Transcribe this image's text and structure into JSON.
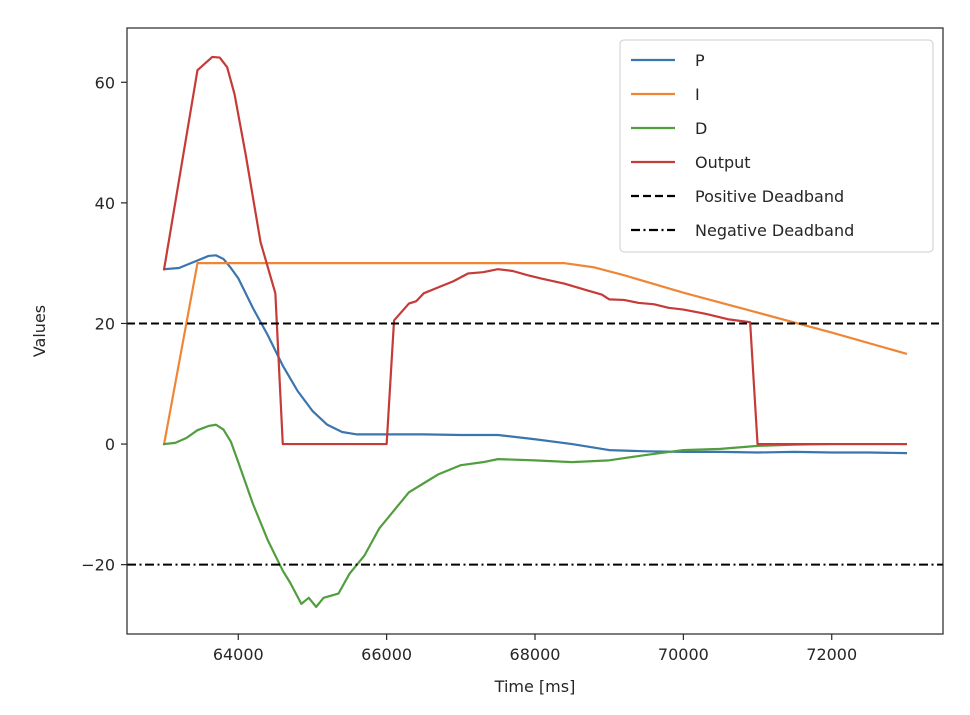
{
  "chart_data": {
    "type": "line",
    "xlabel": "Time [ms]",
    "ylabel": "Values",
    "xlim": [
      62500,
      73500
    ],
    "ylim": [
      -31.5,
      69
    ],
    "xticks": [
      64000,
      66000,
      68000,
      70000,
      72000
    ],
    "yticks": [
      -20,
      0,
      20,
      40,
      60
    ],
    "ytick_labels": [
      "−20",
      "0",
      "20",
      "40",
      "60"
    ],
    "legend": {
      "placement": "upper-right"
    },
    "grid": false,
    "series": [
      {
        "name": "P",
        "color": "#3b75af",
        "style": "solid",
        "points": [
          [
            63000,
            29
          ],
          [
            63200,
            29.2
          ],
          [
            63400,
            30.2
          ],
          [
            63600,
            31.2
          ],
          [
            63700,
            31.3
          ],
          [
            63800,
            30.7
          ],
          [
            63900,
            29.2
          ],
          [
            64000,
            27.5
          ],
          [
            64200,
            22.5
          ],
          [
            64400,
            18
          ],
          [
            64600,
            13
          ],
          [
            64800,
            8.8
          ],
          [
            65000,
            5.5
          ],
          [
            65200,
            3.2
          ],
          [
            65400,
            2
          ],
          [
            65600,
            1.6
          ],
          [
            66000,
            1.6
          ],
          [
            66500,
            1.6
          ],
          [
            67000,
            1.5
          ],
          [
            67500,
            1.5
          ],
          [
            68000,
            0.8
          ],
          [
            68500,
            0
          ],
          [
            69000,
            -1
          ],
          [
            69500,
            -1.2
          ],
          [
            70000,
            -1.3
          ],
          [
            70500,
            -1.3
          ],
          [
            71000,
            -1.4
          ],
          [
            71500,
            -1.3
          ],
          [
            72000,
            -1.4
          ],
          [
            72500,
            -1.4
          ],
          [
            73000,
            -1.5
          ]
        ]
      },
      {
        "name": "I",
        "color": "#ef8636",
        "style": "solid",
        "points": [
          [
            63000,
            0
          ],
          [
            63450,
            30
          ],
          [
            64000,
            30
          ],
          [
            66000,
            30
          ],
          [
            68000,
            30
          ],
          [
            68400,
            30
          ],
          [
            68800,
            29.3
          ],
          [
            69200,
            28
          ],
          [
            70000,
            25.1
          ],
          [
            71000,
            21.8
          ],
          [
            72000,
            18.5
          ],
          [
            73000,
            15
          ]
        ]
      },
      {
        "name": "D",
        "color": "#519e3e",
        "style": "solid",
        "points": [
          [
            63000,
            0
          ],
          [
            63150,
            0.2
          ],
          [
            63300,
            1
          ],
          [
            63450,
            2.3
          ],
          [
            63600,
            3
          ],
          [
            63700,
            3.2
          ],
          [
            63800,
            2.4
          ],
          [
            63900,
            0.4
          ],
          [
            64000,
            -3
          ],
          [
            64200,
            -10
          ],
          [
            64400,
            -16
          ],
          [
            64600,
            -21
          ],
          [
            64700,
            -23
          ],
          [
            64850,
            -26.5
          ],
          [
            64950,
            -25.5
          ],
          [
            65050,
            -27
          ],
          [
            65150,
            -25.5
          ],
          [
            65350,
            -24.8
          ],
          [
            65500,
            -21.5
          ],
          [
            65700,
            -18.5
          ],
          [
            65900,
            -14
          ],
          [
            66100,
            -11
          ],
          [
            66300,
            -8
          ],
          [
            66500,
            -6.5
          ],
          [
            66700,
            -5
          ],
          [
            67000,
            -3.5
          ],
          [
            67300,
            -3
          ],
          [
            67500,
            -2.5
          ],
          [
            68000,
            -2.7
          ],
          [
            68500,
            -3
          ],
          [
            69000,
            -2.7
          ],
          [
            69500,
            -1.8
          ],
          [
            70000,
            -1
          ],
          [
            70500,
            -0.8
          ],
          [
            71000,
            -0.3
          ],
          [
            71500,
            -0.1
          ],
          [
            72000,
            0
          ],
          [
            72500,
            0
          ],
          [
            73000,
            0
          ]
        ]
      },
      {
        "name": "Output",
        "color": "#c43b37",
        "style": "solid",
        "points": [
          [
            63000,
            29
          ],
          [
            63450,
            62
          ],
          [
            63650,
            64.2
          ],
          [
            63750,
            64.1
          ],
          [
            63850,
            62.5
          ],
          [
            63950,
            58
          ],
          [
            64100,
            48
          ],
          [
            64300,
            33.5
          ],
          [
            64500,
            25
          ],
          [
            64600,
            0
          ],
          [
            65000,
            0
          ],
          [
            66000,
            0
          ],
          [
            66100,
            20.5
          ],
          [
            66300,
            23.3
          ],
          [
            66400,
            23.7
          ],
          [
            66500,
            25
          ],
          [
            66700,
            26
          ],
          [
            66900,
            27
          ],
          [
            67100,
            28.3
          ],
          [
            67300,
            28.5
          ],
          [
            67500,
            29
          ],
          [
            67700,
            28.7
          ],
          [
            67900,
            28
          ],
          [
            68100,
            27.4
          ],
          [
            68400,
            26.6
          ],
          [
            68700,
            25.5
          ],
          [
            68900,
            24.8
          ],
          [
            69000,
            24
          ],
          [
            69200,
            23.9
          ],
          [
            69400,
            23.4
          ],
          [
            69600,
            23.2
          ],
          [
            69800,
            22.6
          ],
          [
            70000,
            22.3
          ],
          [
            70300,
            21.6
          ],
          [
            70600,
            20.7
          ],
          [
            70900,
            20.2
          ],
          [
            71000,
            0
          ],
          [
            71500,
            0
          ],
          [
            72000,
            0
          ],
          [
            72500,
            0
          ],
          [
            73000,
            0
          ]
        ]
      },
      {
        "name": "Positive Deadband",
        "color": "#000000",
        "style": "dashed",
        "hline": 20
      },
      {
        "name": "Negative Deadband",
        "color": "#000000",
        "style": "dashdot",
        "hline": -20
      }
    ]
  }
}
